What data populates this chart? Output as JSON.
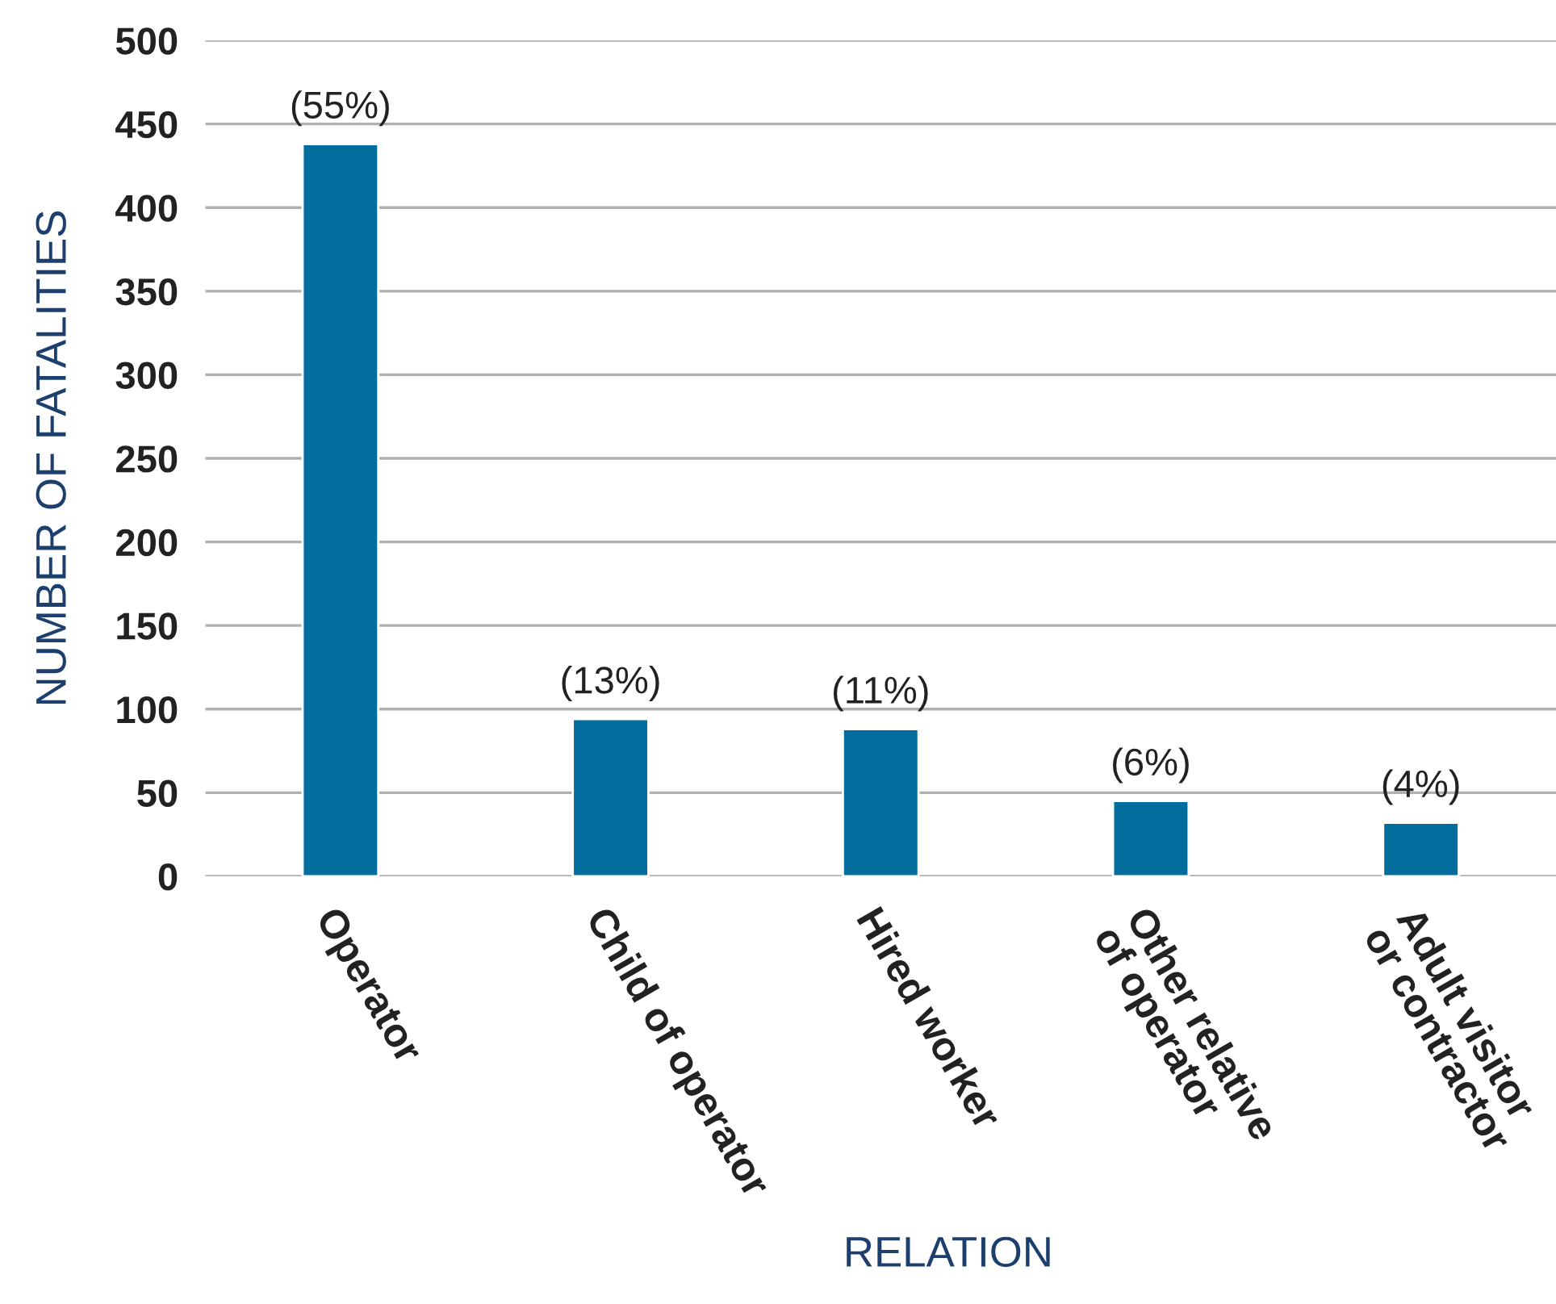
{
  "chart_data": {
    "type": "bar",
    "xlabel": "RELATION",
    "ylabel": "NUMBER OF FATALITIES",
    "categories": [
      "Operator",
      "Child of operator",
      "Hired worker",
      "Other relative\nof operator",
      "Adult visitor\nor contractor"
    ],
    "values": [
      438,
      94,
      88,
      45,
      32
    ],
    "annotations": [
      {
        "text": "(55%)",
        "x": "Operator",
        "y": 438
      },
      {
        "text": "(13%)",
        "x": "Child of operator",
        "y": 94
      },
      {
        "text": "(11%)",
        "x": "Hired worker",
        "y": 88
      },
      {
        "text": "(6%)",
        "x": "Other relative\nof operator",
        "y": 45
      },
      {
        "text": "(4%)",
        "x": "Adult visitor\nor contractor",
        "y": 32
      }
    ],
    "color": "#036d9e",
    "ylim": [
      0,
      500
    ],
    "yticks": [
      0,
      50,
      100,
      150,
      200,
      250,
      300,
      350,
      400,
      450,
      500
    ],
    "grid": "y",
    "legend": false
  }
}
